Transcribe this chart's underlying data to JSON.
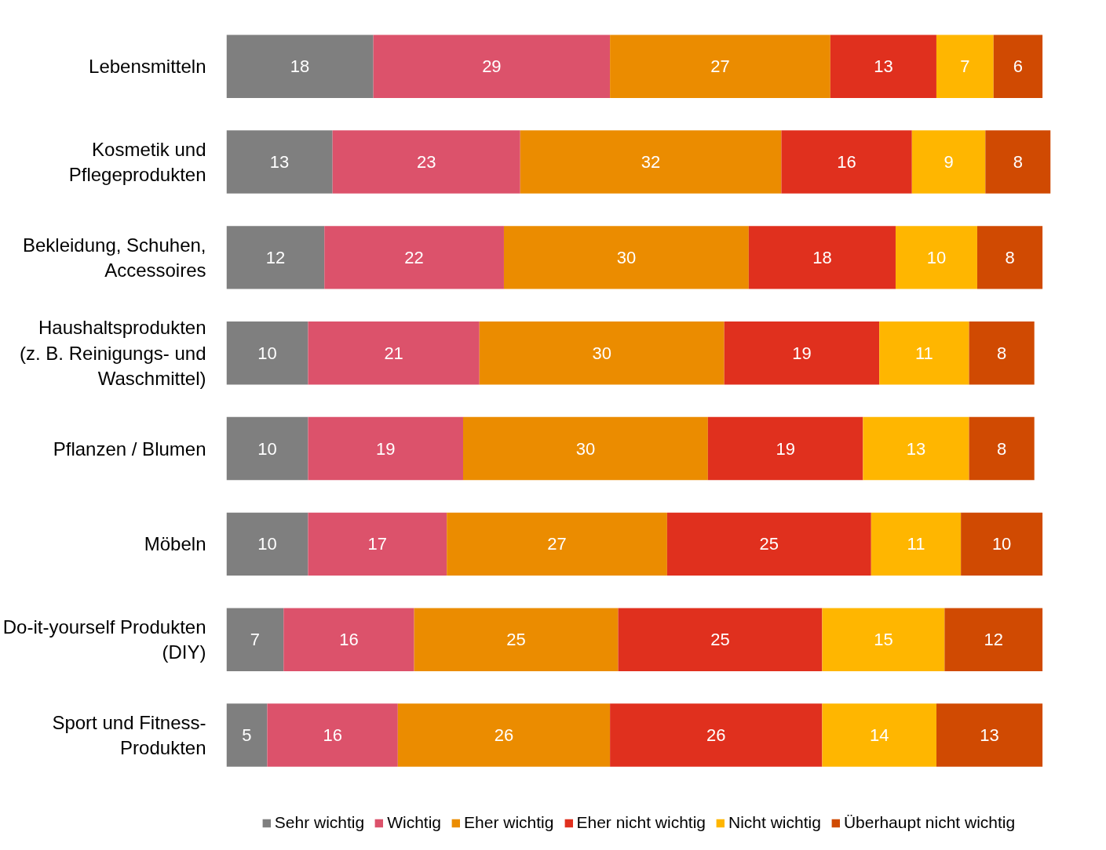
{
  "chart_data": {
    "type": "bar",
    "orientation": "horizontal",
    "stacked": true,
    "data_labels": true,
    "legend": "bottom",
    "grid": false,
    "categories": [
      "Lebensmitteln",
      "Kosmetik und\nPflegeprodukten",
      "Bekleidung, Schuhen,\nAccessoires",
      "Haushaltsprodukten\n(z. B. Reinigungs- und\nWaschmittel)",
      "Pflanzen / Blumen",
      "Möbeln",
      "Do-it-yourself Produkten\n(DIY)",
      "Sport und Fitness-\nProdukten"
    ],
    "series": [
      {
        "name": "Sehr wichtig",
        "color": "#7f7f7f",
        "values": [
          18,
          13,
          12,
          10,
          10,
          10,
          7,
          5
        ]
      },
      {
        "name": "Wichtig",
        "color": "#dc526b",
        "values": [
          29,
          23,
          22,
          21,
          19,
          17,
          16,
          16
        ]
      },
      {
        "name": "Eher wichtig",
        "color": "#eb8c00",
        "values": [
          27,
          32,
          30,
          30,
          30,
          27,
          25,
          26
        ]
      },
      {
        "name": "Eher nicht wichtig",
        "color": "#e0301e",
        "values": [
          13,
          16,
          18,
          19,
          19,
          25,
          25,
          26
        ]
      },
      {
        "name": "Nicht wichtig",
        "color": "#ffb600",
        "values": [
          7,
          9,
          10,
          11,
          13,
          11,
          15,
          14
        ]
      },
      {
        "name": "Überhaupt nicht wichtig",
        "color": "#d04a02",
        "values": [
          6,
          8,
          8,
          8,
          8,
          10,
          12,
          13
        ]
      }
    ]
  }
}
